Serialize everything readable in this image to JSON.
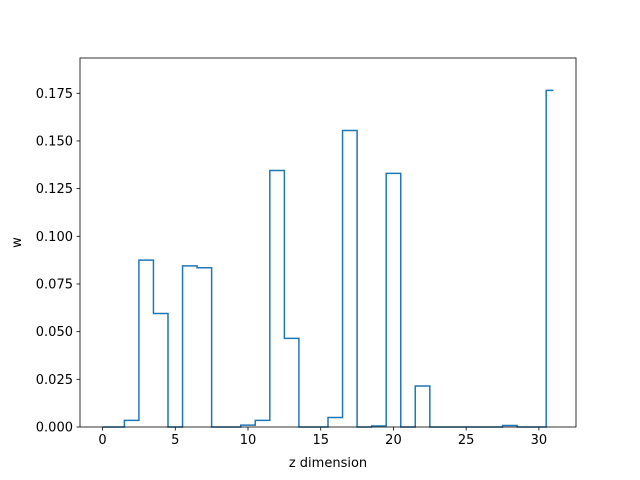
{
  "chart_data": {
    "type": "line",
    "style": "step-mid",
    "xlabel": "z dimension",
    "ylabel": "w",
    "xlim": [
      -1.55,
      32.55
    ],
    "ylim": [
      0,
      0.1935
    ],
    "xticks": [
      0,
      5,
      10,
      15,
      20,
      25,
      30
    ],
    "xtick_labels": [
      "0",
      "5",
      "10",
      "15",
      "20",
      "25",
      "30"
    ],
    "yticks": [
      0.0,
      0.025,
      0.05,
      0.075,
      0.1,
      0.125,
      0.15,
      0.175
    ],
    "ytick_labels": [
      "0.000",
      "0.025",
      "0.050",
      "0.075",
      "0.100",
      "0.125",
      "0.150",
      "0.175"
    ],
    "grid": false,
    "line_color": "#1f77b4",
    "x": [
      0,
      1,
      2,
      3,
      4,
      5,
      6,
      7,
      8,
      9,
      10,
      11,
      12,
      13,
      14,
      15,
      16,
      17,
      18,
      19,
      20,
      21,
      22,
      23,
      24,
      25,
      26,
      27,
      28,
      29,
      30,
      31
    ],
    "y": [
      0.0,
      0.0,
      0.0035,
      0.0875,
      0.0595,
      0.0,
      0.0845,
      0.0835,
      0.0,
      0.0,
      0.001,
      0.0035,
      0.1345,
      0.0465,
      0.0,
      0.0,
      0.005,
      0.1555,
      0.0,
      0.0005,
      0.133,
      0.0,
      0.0215,
      0.0,
      0.0,
      0.0,
      0.0,
      0.0,
      0.0008,
      0.0,
      0.0,
      0.1765
    ]
  }
}
